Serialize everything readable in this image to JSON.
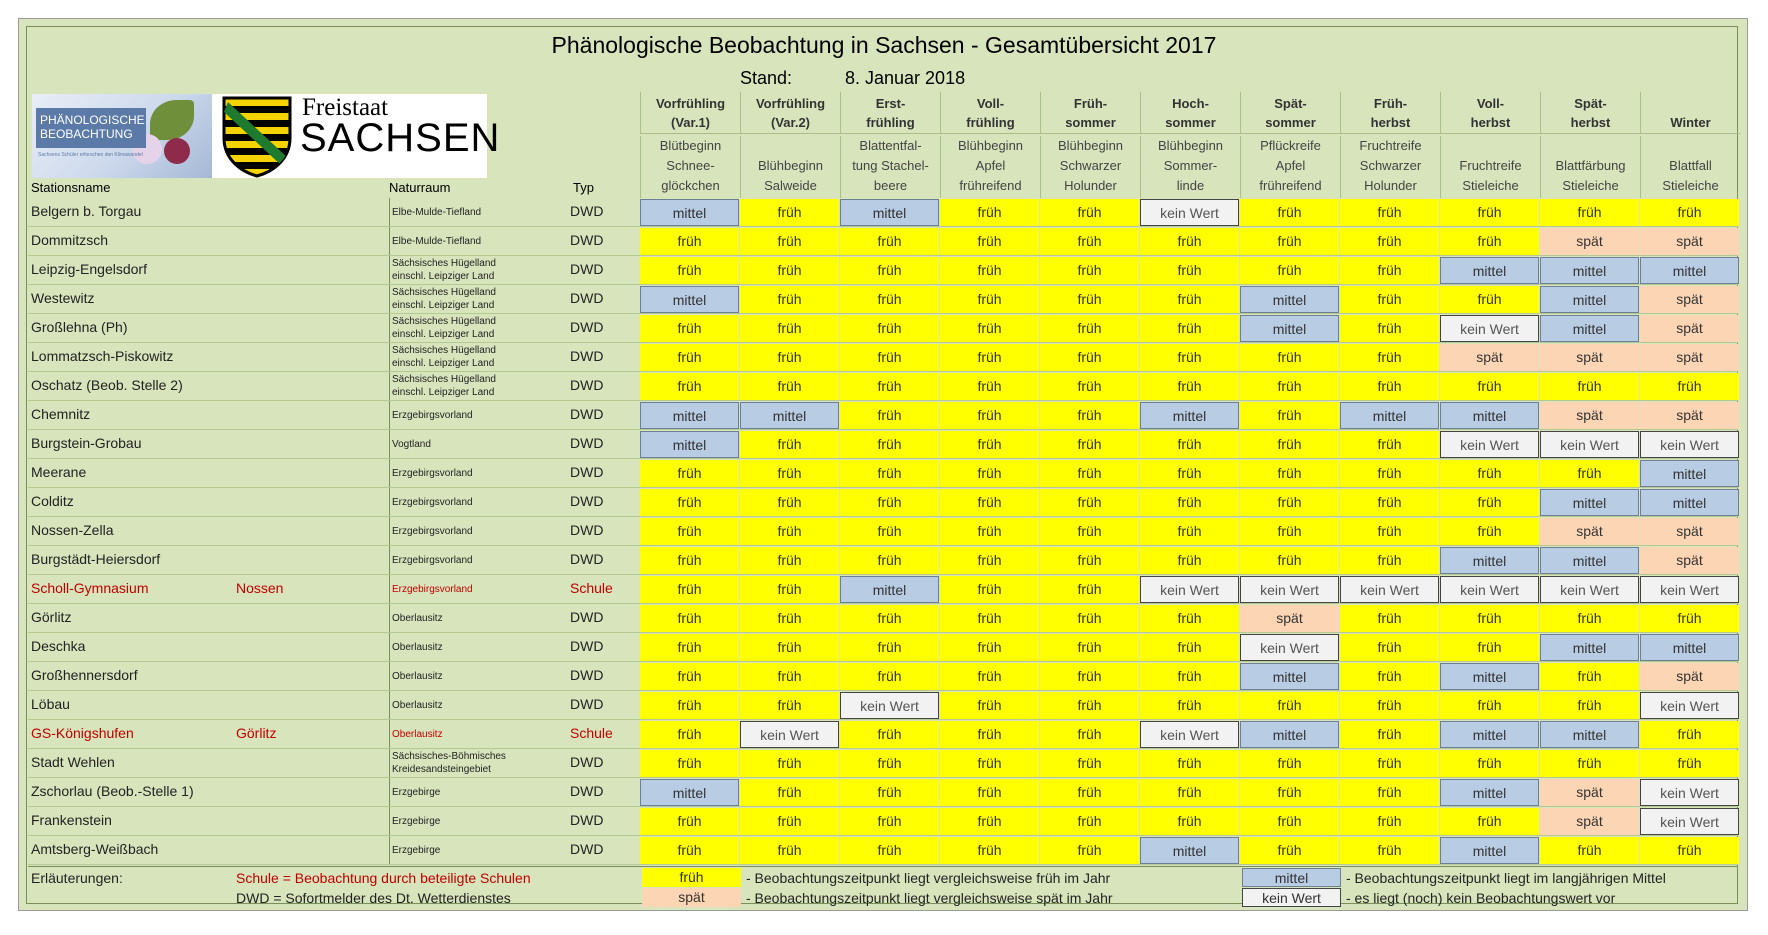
{
  "title": "Phänologische Beobachtung in Sachsen - Gesamtübersicht 2017",
  "stand_label": "Stand:",
  "stand_date": "8. Januar 2018",
  "logo": {
    "left_text_1": "PHÄNOLOGISCHE",
    "left_text_2": "BEOBACHTUNG",
    "left_small": "Sachsens Schüler erforschen den Klimawandel",
    "right_text_1": "Freistaat",
    "right_text_2": "SACHSEN"
  },
  "headers": {
    "station": "Stationsname",
    "naturraum": "Naturraum",
    "typ": "Typ"
  },
  "phases": [
    {
      "season_1": "Vorfrühling",
      "season_2": "(Var.1)",
      "desc_1": "Blütbeginn",
      "desc_2": "Schnee-",
      "desc_3": "glöckchen"
    },
    {
      "season_1": "Vorfrühling",
      "season_2": "(Var.2)",
      "desc_1": "",
      "desc_2": "Blühbeginn",
      "desc_3": "Salweide"
    },
    {
      "season_1": "Erst-",
      "season_2": "frühling",
      "desc_1": "Blattentfal-",
      "desc_2": "tung Stachel-",
      "desc_3": "beere"
    },
    {
      "season_1": "Voll-",
      "season_2": "frühling",
      "desc_1": "Blühbeginn",
      "desc_2": "Apfel",
      "desc_3": "frühreifend"
    },
    {
      "season_1": "Früh-",
      "season_2": "sommer",
      "desc_1": "Blühbeginn",
      "desc_2": "Schwarzer",
      "desc_3": "Holunder"
    },
    {
      "season_1": "Hoch-",
      "season_2": "sommer",
      "desc_1": "Blühbeginn",
      "desc_2": "Sommer-",
      "desc_3": "linde"
    },
    {
      "season_1": "Spät-",
      "season_2": "sommer",
      "desc_1": "Pflückreife",
      "desc_2": "Apfel",
      "desc_3": "frühreifend"
    },
    {
      "season_1": "Früh-",
      "season_2": "herbst",
      "desc_1": "Fruchtreife",
      "desc_2": "Schwarzer",
      "desc_3": "Holunder"
    },
    {
      "season_1": "Voll-",
      "season_2": "herbst",
      "desc_1": "",
      "desc_2": "Fruchtreife",
      "desc_3": "Stieleiche"
    },
    {
      "season_1": "Spät-",
      "season_2": "herbst",
      "desc_1": "",
      "desc_2": "Blattfärbung",
      "desc_3": "Stieleiche"
    },
    {
      "season_1": "",
      "season_2": "Winter",
      "desc_1": "",
      "desc_2": "Blattfall",
      "desc_3": "Stieleiche"
    }
  ],
  "rows": [
    {
      "name": "Belgern b. Torgau",
      "city": "",
      "nat_1": "Elbe-Mulde-Tiefland",
      "nat_2": "",
      "typ": "DWD",
      "school": false,
      "v": [
        "mittel",
        "früh",
        "mittel",
        "früh",
        "früh",
        "kein Wert",
        "früh",
        "früh",
        "früh",
        "früh",
        "früh"
      ]
    },
    {
      "name": "Dommitzsch",
      "city": "",
      "nat_1": "Elbe-Mulde-Tiefland",
      "nat_2": "",
      "typ": "DWD",
      "school": false,
      "v": [
        "früh",
        "früh",
        "früh",
        "früh",
        "früh",
        "früh",
        "früh",
        "früh",
        "früh",
        "spät",
        "spät"
      ]
    },
    {
      "name": "Leipzig-Engelsdorf",
      "city": "",
      "nat_1": "Sächsisches Hügelland",
      "nat_2": "einschl. Leipziger Land",
      "typ": "DWD",
      "school": false,
      "v": [
        "früh",
        "früh",
        "früh",
        "früh",
        "früh",
        "früh",
        "früh",
        "früh",
        "mittel",
        "mittel",
        "mittel"
      ]
    },
    {
      "name": "Westewitz",
      "city": "",
      "nat_1": "Sächsisches Hügelland",
      "nat_2": "einschl. Leipziger Land",
      "typ": "DWD",
      "school": false,
      "v": [
        "mittel",
        "früh",
        "früh",
        "früh",
        "früh",
        "früh",
        "mittel",
        "früh",
        "früh",
        "mittel",
        "spät"
      ]
    },
    {
      "name": "Großlehna (Ph)",
      "city": "",
      "nat_1": "Sächsisches Hügelland",
      "nat_2": "einschl. Leipziger Land",
      "typ": "DWD",
      "school": false,
      "v": [
        "früh",
        "früh",
        "früh",
        "früh",
        "früh",
        "früh",
        "mittel",
        "früh",
        "kein Wert",
        "mittel",
        "spät"
      ]
    },
    {
      "name": "Lommatzsch-Piskowitz",
      "city": "",
      "nat_1": "Sächsisches Hügelland",
      "nat_2": "einschl. Leipziger Land",
      "typ": "DWD",
      "school": false,
      "v": [
        "früh",
        "früh",
        "früh",
        "früh",
        "früh",
        "früh",
        "früh",
        "früh",
        "spät",
        "spät",
        "spät"
      ]
    },
    {
      "name": "Oschatz (Beob. Stelle 2)",
      "city": "",
      "nat_1": "Sächsisches Hügelland",
      "nat_2": "einschl. Leipziger Land",
      "typ": "DWD",
      "school": false,
      "v": [
        "früh",
        "früh",
        "früh",
        "früh",
        "früh",
        "früh",
        "früh",
        "früh",
        "früh",
        "früh",
        "früh"
      ]
    },
    {
      "name": "Chemnitz",
      "city": "",
      "nat_1": "Erzgebirgsvorland",
      "nat_2": "",
      "typ": "DWD",
      "school": false,
      "v": [
        "mittel",
        "mittel",
        "früh",
        "früh",
        "früh",
        "mittel",
        "früh",
        "mittel",
        "mittel",
        "spät",
        "spät"
      ]
    },
    {
      "name": "Burgstein-Grobau",
      "city": "",
      "nat_1": "Vogtland",
      "nat_2": "",
      "typ": "DWD",
      "school": false,
      "v": [
        "mittel",
        "früh",
        "früh",
        "früh",
        "früh",
        "früh",
        "früh",
        "früh",
        "kein Wert",
        "kein Wert",
        "kein Wert"
      ]
    },
    {
      "name": "Meerane",
      "city": "",
      "nat_1": "Erzgebirgsvorland",
      "nat_2": "",
      "typ": "DWD",
      "school": false,
      "v": [
        "früh",
        "früh",
        "früh",
        "früh",
        "früh",
        "früh",
        "früh",
        "früh",
        "früh",
        "früh",
        "mittel"
      ]
    },
    {
      "name": "Colditz",
      "city": "",
      "nat_1": "Erzgebirgsvorland",
      "nat_2": "",
      "typ": "DWD",
      "school": false,
      "v": [
        "früh",
        "früh",
        "früh",
        "früh",
        "früh",
        "früh",
        "früh",
        "früh",
        "früh",
        "mittel",
        "mittel"
      ]
    },
    {
      "name": "Nossen-Zella",
      "city": "",
      "nat_1": "Erzgebirgsvorland",
      "nat_2": "",
      "typ": "DWD",
      "school": false,
      "v": [
        "früh",
        "früh",
        "früh",
        "früh",
        "früh",
        "früh",
        "früh",
        "früh",
        "früh",
        "spät",
        "spät"
      ]
    },
    {
      "name": "Burgstädt-Heiersdorf",
      "city": "",
      "nat_1": "Erzgebirgsvorland",
      "nat_2": "",
      "typ": "DWD",
      "school": false,
      "v": [
        "früh",
        "früh",
        "früh",
        "früh",
        "früh",
        "früh",
        "früh",
        "früh",
        "mittel",
        "mittel",
        "spät"
      ]
    },
    {
      "name": "Scholl-Gymnasium",
      "city": "Nossen",
      "nat_1": "Erzgebirgsvorland",
      "nat_2": "",
      "typ": "Schule",
      "school": true,
      "v": [
        "früh",
        "früh",
        "mittel",
        "früh",
        "früh",
        "kein Wert",
        "kein Wert",
        "kein Wert",
        "kein Wert",
        "kein Wert",
        "kein Wert"
      ]
    },
    {
      "name": "Görlitz",
      "city": "",
      "nat_1": "Oberlausitz",
      "nat_2": "",
      "typ": "DWD",
      "school": false,
      "v": [
        "früh",
        "früh",
        "früh",
        "früh",
        "früh",
        "früh",
        "spät",
        "früh",
        "früh",
        "früh",
        "früh"
      ]
    },
    {
      "name": "Deschka",
      "city": "",
      "nat_1": "Oberlausitz",
      "nat_2": "",
      "typ": "DWD",
      "school": false,
      "v": [
        "früh",
        "früh",
        "früh",
        "früh",
        "früh",
        "früh",
        "kein Wert",
        "früh",
        "früh",
        "mittel",
        "mittel"
      ]
    },
    {
      "name": "Großhennersdorf",
      "city": "",
      "nat_1": "Oberlausitz",
      "nat_2": "",
      "typ": "DWD",
      "school": false,
      "v": [
        "früh",
        "früh",
        "früh",
        "früh",
        "früh",
        "früh",
        "mittel",
        "früh",
        "mittel",
        "früh",
        "spät"
      ]
    },
    {
      "name": "Löbau",
      "city": "",
      "nat_1": "Oberlausitz",
      "nat_2": "",
      "typ": "DWD",
      "school": false,
      "v": [
        "früh",
        "früh",
        "kein Wert",
        "früh",
        "früh",
        "früh",
        "früh",
        "früh",
        "früh",
        "früh",
        "kein Wert"
      ]
    },
    {
      "name": "GS-Königshufen",
      "city": "Görlitz",
      "nat_1": "Oberlausitz",
      "nat_2": "",
      "typ": "Schule",
      "school": true,
      "v": [
        "früh",
        "kein Wert",
        "früh",
        "früh",
        "früh",
        "kein Wert",
        "mittel",
        "früh",
        "mittel",
        "mittel",
        "früh"
      ]
    },
    {
      "name": "Stadt Wehlen",
      "city": "",
      "nat_1": "Sächsisches-Böhmisches",
      "nat_2": "Kreidesandsteingebiet",
      "typ": "DWD",
      "school": false,
      "v": [
        "früh",
        "früh",
        "früh",
        "früh",
        "früh",
        "früh",
        "früh",
        "früh",
        "früh",
        "früh",
        "früh"
      ]
    },
    {
      "name": "Zschorlau (Beob.-Stelle 1)",
      "city": "",
      "nat_1": "Erzgebirge",
      "nat_2": "",
      "typ": "DWD",
      "school": false,
      "v": [
        "mittel",
        "früh",
        "früh",
        "früh",
        "früh",
        "früh",
        "früh",
        "früh",
        "mittel",
        "spät",
        "kein Wert"
      ]
    },
    {
      "name": "Frankenstein",
      "city": "",
      "nat_1": "Erzgebirge",
      "nat_2": "",
      "typ": "DWD",
      "school": false,
      "v": [
        "früh",
        "früh",
        "früh",
        "früh",
        "früh",
        "früh",
        "früh",
        "früh",
        "früh",
        "spät",
        "kein Wert"
      ]
    },
    {
      "name": "Amtsberg-Weißbach",
      "city": "",
      "nat_1": "Erzgebirge",
      "nat_2": "",
      "typ": "DWD",
      "school": false,
      "v": [
        "früh",
        "früh",
        "früh",
        "früh",
        "früh",
        "mittel",
        "früh",
        "früh",
        "mittel",
        "früh",
        "früh"
      ]
    }
  ],
  "legend": {
    "heading": "Erläuterungen:",
    "schule": "Schule = Beobachtung durch beteiligte Schulen",
    "dwd": "DWD = Sofortmelder des Dt. Wetterdienstes",
    "frueh_label": "früh",
    "frueh_desc": "- Beobachtungszeitpunkt liegt vergleichsweise früh im Jahr",
    "spaet_label": "spät",
    "spaet_desc": "- Beobachtungszeitpunkt liegt vergleichsweise spät im Jahr",
    "mittel_label": "mittel",
    "mittel_desc": "- Beobachtungszeitpunkt liegt im langjährigen Mittel",
    "kein_label": "kein Wert",
    "kein_desc": "- es liegt (noch) kein Beobachtungswert vor"
  },
  "colors": {
    "frame_bg": "#d8e4bc",
    "frueh": "#ffff00",
    "mittel": "#b8cce4",
    "spaet": "#fcd5b4",
    "kein": "#f2f2f2",
    "school_text": "#c00000"
  }
}
